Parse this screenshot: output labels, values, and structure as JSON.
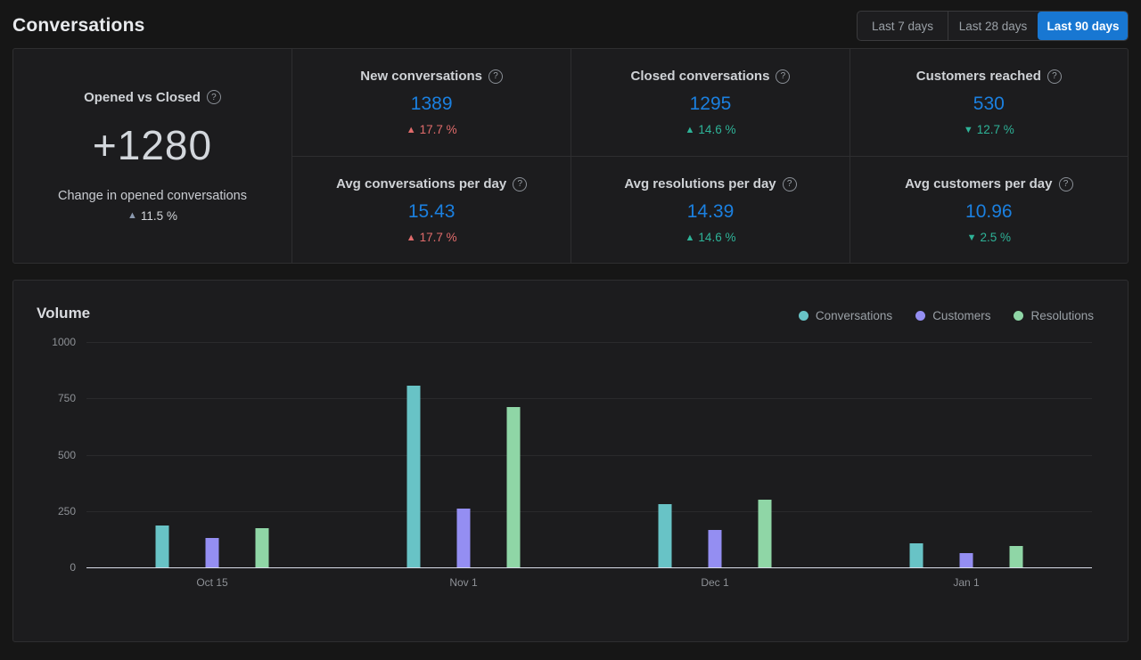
{
  "header": {
    "title": "Conversations",
    "range_buttons": [
      {
        "label": "Last 7 days",
        "active": false
      },
      {
        "label": "Last 28 days",
        "active": false
      },
      {
        "label": "Last 90 days",
        "active": true
      }
    ]
  },
  "stats": {
    "primary_card": {
      "title": "Opened vs Closed",
      "value": "+1280",
      "subtitle": "Change in opened conversations",
      "delta": {
        "arrow": "▲",
        "value": "11.5 %",
        "tone": "neutral"
      }
    },
    "cards": [
      {
        "title": "New conversations",
        "value": "1389",
        "delta": {
          "arrow": "▲",
          "value": "17.7 %",
          "tone": "negative"
        }
      },
      {
        "title": "Closed conversations",
        "value": "1295",
        "delta": {
          "arrow": "▲",
          "value": "14.6 %",
          "tone": "positive"
        }
      },
      {
        "title": "Customers reached",
        "value": "530",
        "delta": {
          "arrow": "▼",
          "value": "12.7 %",
          "tone": "positive"
        }
      },
      {
        "title": "Avg conversations per day",
        "value": "15.43",
        "delta": {
          "arrow": "▲",
          "value": "17.7 %",
          "tone": "negative"
        }
      },
      {
        "title": "Avg resolutions per day",
        "value": "14.39",
        "delta": {
          "arrow": "▲",
          "value": "14.6 %",
          "tone": "positive"
        }
      },
      {
        "title": "Avg customers per day",
        "value": "10.96",
        "delta": {
          "arrow": "▼",
          "value": "2.5 %",
          "tone": "positive"
        }
      }
    ]
  },
  "volume": {
    "title": "Volume",
    "legend": [
      {
        "label": "Conversations"
      },
      {
        "label": "Customers"
      },
      {
        "label": "Resolutions"
      }
    ]
  },
  "chart_data": {
    "type": "bar",
    "title": "Volume",
    "categories": [
      "Oct 15",
      "Nov 1",
      "Dec 1",
      "Jan 1"
    ],
    "series": [
      {
        "name": "Conversations",
        "color": "#68c3c6",
        "values": [
          185,
          805,
          280,
          105
        ]
      },
      {
        "name": "Customers",
        "color": "#948ef2",
        "values": [
          130,
          260,
          165,
          65
        ]
      },
      {
        "name": "Resolutions",
        "color": "#8fd6a6",
        "values": [
          175,
          710,
          300,
          95
        ]
      }
    ],
    "ylim": [
      0,
      1000
    ],
    "yticks": [
      0,
      250,
      500,
      750,
      1000
    ],
    "grid": true,
    "legend_position": "top-right"
  },
  "colors": {
    "accent_blue": "#1877d2",
    "value_blue": "#1b80e0",
    "delta_negative": "#e06b6b",
    "delta_positive": "#2eb398",
    "delta_neutral_arrow": "#8b99ae",
    "bar_conversations": "#68c3c6",
    "bar_customers": "#948ef2",
    "bar_resolutions": "#8fd6a6"
  }
}
